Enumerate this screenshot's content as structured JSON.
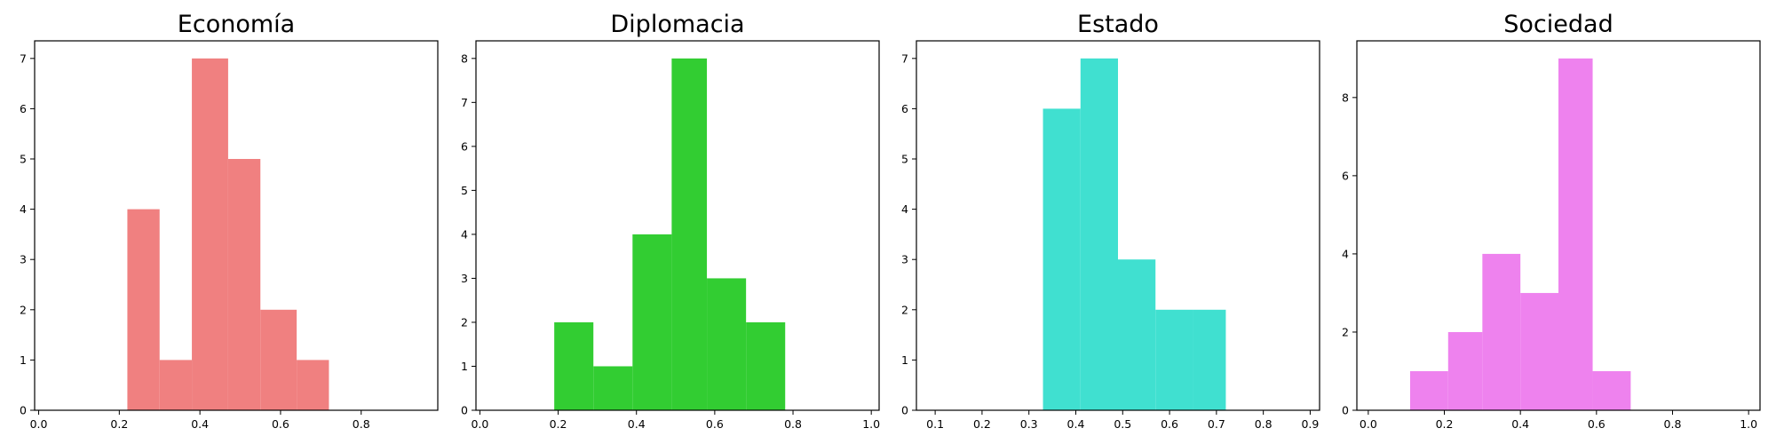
{
  "chart_data": [
    {
      "type": "histogram",
      "title": "Economía",
      "color": "#f08080",
      "bins": [
        {
          "x0": 0.22,
          "x1": 0.3,
          "count": 4
        },
        {
          "x0": 0.3,
          "x1": 0.38,
          "count": 1
        },
        {
          "x0": 0.38,
          "x1": 0.47,
          "count": 7
        },
        {
          "x0": 0.47,
          "x1": 0.55,
          "count": 5
        },
        {
          "x0": 0.55,
          "x1": 0.64,
          "count": 2
        },
        {
          "x0": 0.64,
          "x1": 0.72,
          "count": 1
        }
      ],
      "xlim": [
        -0.01,
        0.99
      ],
      "ylim": [
        0,
        7.35
      ],
      "xticks": [
        "0.0",
        "0.2",
        "0.4",
        "0.6",
        "0.8"
      ],
      "yticks": [
        "0",
        "1",
        "2",
        "3",
        "4",
        "5",
        "6",
        "7"
      ]
    },
    {
      "type": "histogram",
      "title": "Diplomacia",
      "color": "#32cd32",
      "bins": [
        {
          "x0": 0.19,
          "x1": 0.29,
          "count": 2
        },
        {
          "x0": 0.29,
          "x1": 0.39,
          "count": 1
        },
        {
          "x0": 0.39,
          "x1": 0.49,
          "count": 4
        },
        {
          "x0": 0.49,
          "x1": 0.58,
          "count": 8
        },
        {
          "x0": 0.58,
          "x1": 0.68,
          "count": 3
        },
        {
          "x0": 0.68,
          "x1": 0.78,
          "count": 2
        }
      ],
      "xlim": [
        -0.01,
        1.02
      ],
      "ylim": [
        0,
        8.4
      ],
      "xticks": [
        "0.0",
        "0.2",
        "0.4",
        "0.6",
        "0.8",
        "1.0"
      ],
      "yticks": [
        "0",
        "1",
        "2",
        "3",
        "4",
        "5",
        "6",
        "7",
        "8"
      ]
    },
    {
      "type": "histogram",
      "title": "Estado",
      "color": "#40e0d0",
      "bins": [
        {
          "x0": 0.33,
          "x1": 0.41,
          "count": 6
        },
        {
          "x0": 0.41,
          "x1": 0.49,
          "count": 7
        },
        {
          "x0": 0.49,
          "x1": 0.57,
          "count": 3
        },
        {
          "x0": 0.57,
          "x1": 0.65,
          "count": 2
        },
        {
          "x0": 0.65,
          "x1": 0.72,
          "count": 2
        }
      ],
      "xlim": [
        0.06,
        0.92
      ],
      "ylim": [
        0,
        7.35
      ],
      "xticks": [
        "0.1",
        "0.2",
        "0.3",
        "0.4",
        "0.5",
        "0.6",
        "0.7",
        "0.8",
        "0.9"
      ],
      "yticks": [
        "0",
        "1",
        "2",
        "3",
        "4",
        "5",
        "6",
        "7"
      ]
    },
    {
      "type": "histogram",
      "title": "Sociedad",
      "color": "#ee82ee",
      "bins": [
        {
          "x0": 0.11,
          "x1": 0.21,
          "count": 1
        },
        {
          "x0": 0.21,
          "x1": 0.3,
          "count": 2
        },
        {
          "x0": 0.3,
          "x1": 0.4,
          "count": 4
        },
        {
          "x0": 0.4,
          "x1": 0.5,
          "count": 3
        },
        {
          "x0": 0.5,
          "x1": 0.59,
          "count": 9
        },
        {
          "x0": 0.59,
          "x1": 0.69,
          "count": 1
        }
      ],
      "xlim": [
        -0.03,
        1.03
      ],
      "ylim": [
        0,
        9.45
      ],
      "xticks": [
        "0.0",
        "0.2",
        "0.4",
        "0.6",
        "0.8",
        "1.0"
      ],
      "yticks": [
        "0",
        "2",
        "4",
        "6",
        "8"
      ]
    }
  ]
}
